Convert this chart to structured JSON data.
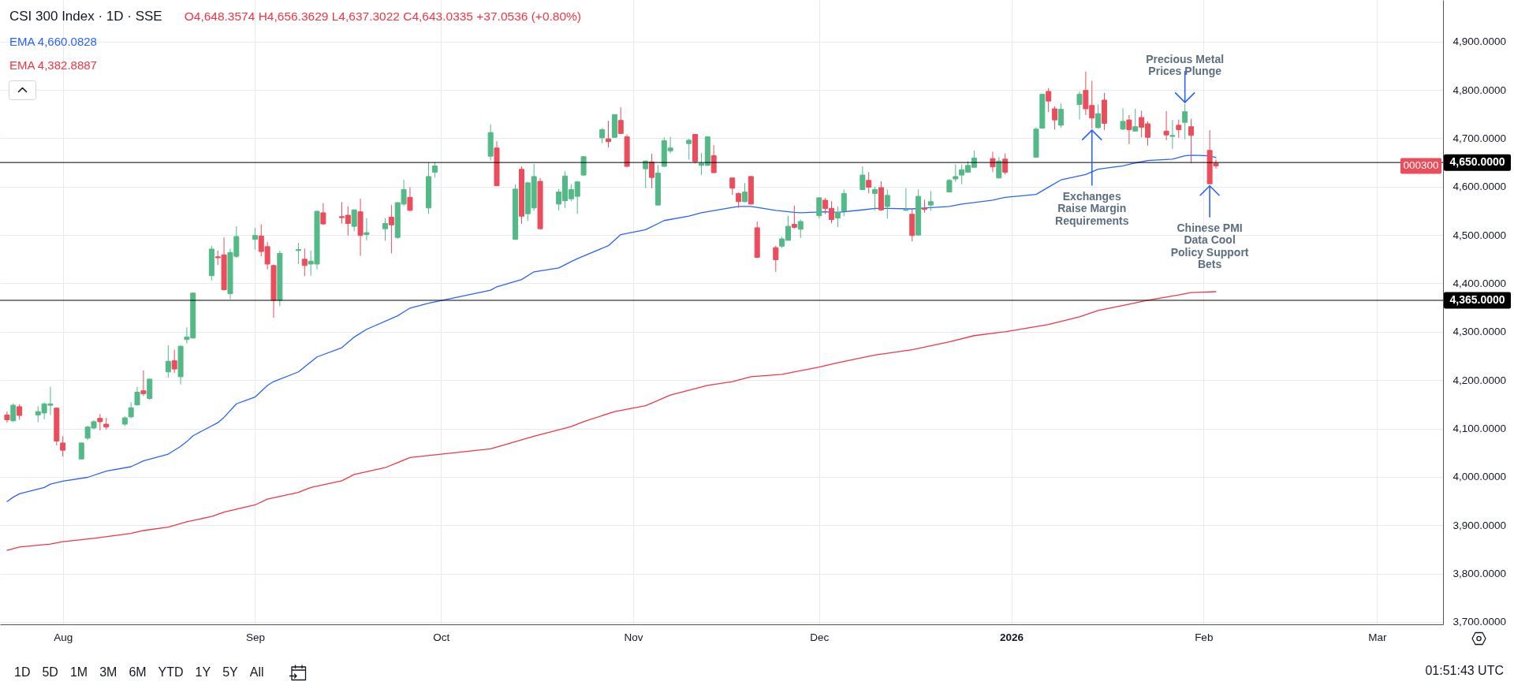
{
  "chart_data": {
    "type": "candlestick",
    "title": "CSI 300 Index · 1D · SSE",
    "subtitle": "O4,648.3574 H4,656.3629 L4,637.3022 C4,643.0335 +37.0536 (+0.80%)",
    "x": [
      "2025-07-23",
      "2025-07-24",
      "2025-07-25",
      "2025-07-28",
      "2025-07-29",
      "2025-07-30",
      "2025-07-31",
      "2025-08-01",
      "2025-08-04",
      "2025-08-05",
      "2025-08-06",
      "2025-08-07",
      "2025-08-08",
      "2025-08-11",
      "2025-08-12",
      "2025-08-13",
      "2025-08-14",
      "2025-08-15",
      "2025-08-18",
      "2025-08-19",
      "2025-08-20",
      "2025-08-21",
      "2025-08-22",
      "2025-08-25",
      "2025-08-26",
      "2025-08-27",
      "2025-08-28",
      "2025-08-29",
      "2025-09-01",
      "2025-09-02",
      "2025-09-03",
      "2025-09-04",
      "2025-09-05",
      "2025-09-08",
      "2025-09-09",
      "2025-09-10",
      "2025-09-11",
      "2025-09-12",
      "2025-09-15",
      "2025-09-16",
      "2025-09-17",
      "2025-09-18",
      "2025-09-19",
      "2025-09-22",
      "2025-09-23",
      "2025-09-24",
      "2025-09-25",
      "2025-09-26",
      "2025-09-29",
      "2025-09-30",
      "2025-10-09",
      "2025-10-10",
      "2025-10-13",
      "2025-10-14",
      "2025-10-15",
      "2025-10-16",
      "2025-10-17",
      "2025-10-20",
      "2025-10-21",
      "2025-10-22",
      "2025-10-23",
      "2025-10-24",
      "2025-10-27",
      "2025-10-28",
      "2025-10-29",
      "2025-10-30",
      "2025-10-31",
      "2025-11-03",
      "2025-11-04",
      "2025-11-05",
      "2025-11-06",
      "2025-11-07",
      "2025-11-10",
      "2025-11-11",
      "2025-11-12",
      "2025-11-13",
      "2025-11-14",
      "2025-11-17",
      "2025-11-18",
      "2025-11-19",
      "2025-11-20",
      "2025-11-21",
      "2025-11-24",
      "2025-11-25",
      "2025-11-26",
      "2025-11-27",
      "2025-11-28",
      "2025-12-01",
      "2025-12-02",
      "2025-12-03",
      "2025-12-04",
      "2025-12-05",
      "2025-12-08",
      "2025-12-09",
      "2025-12-10",
      "2025-12-11",
      "2025-12-12",
      "2025-12-15",
      "2025-12-16",
      "2025-12-17",
      "2025-12-18",
      "2025-12-19",
      "2025-12-22",
      "2025-12-23",
      "2025-12-24",
      "2025-12-25",
      "2025-12-26",
      "2025-12-29",
      "2025-12-30",
      "2025-12-31",
      "2026-01-05",
      "2026-01-06",
      "2026-01-07",
      "2026-01-08",
      "2026-01-09",
      "2026-01-12",
      "2026-01-13",
      "2026-01-14",
      "2026-01-15",
      "2026-01-16",
      "2026-01-19",
      "2026-01-20",
      "2026-01-21",
      "2026-01-22",
      "2026-01-23",
      "2026-01-26",
      "2026-01-27",
      "2026-01-28",
      "2026-01-29",
      "2026-01-30",
      "2026-02-02",
      "2026-02-03"
    ],
    "ohlc": [
      [
        4128,
        4135,
        4112,
        4118
      ],
      [
        4116,
        4152,
        4113,
        4148
      ],
      [
        4145,
        4150,
        4118,
        4127
      ],
      [
        4128,
        4146,
        4113,
        4135
      ],
      [
        4132,
        4154,
        4119,
        4151
      ],
      [
        4148,
        4186,
        4128,
        4151
      ],
      [
        4142,
        4143,
        4065,
        4074
      ],
      [
        4070,
        4084,
        4042,
        4055
      ],
      [
        4037,
        4071,
        4036,
        4070
      ],
      [
        4080,
        4106,
        4076,
        4103
      ],
      [
        4101,
        4117,
        4098,
        4114
      ],
      [
        4121,
        4130,
        4096,
        4114
      ],
      [
        4109,
        4122,
        4098,
        4103
      ],
      [
        4109,
        4125,
        4105,
        4122
      ],
      [
        4124,
        4154,
        4121,
        4143
      ],
      [
        4149,
        4186,
        4147,
        4175
      ],
      [
        4178,
        4220,
        4167,
        4172
      ],
      [
        4162,
        4203,
        4159,
        4202
      ],
      [
        4217,
        4272,
        4205,
        4239
      ],
      [
        4240,
        4263,
        4215,
        4223
      ],
      [
        4207,
        4272,
        4191,
        4270
      ],
      [
        4284,
        4309,
        4276,
        4289
      ],
      [
        4287,
        4381,
        4286,
        4380
      ],
      [
        4416,
        4478,
        4406,
        4471
      ],
      [
        4455,
        4468,
        4438,
        4453
      ],
      [
        4459,
        4495,
        4385,
        4387
      ],
      [
        4379,
        4472,
        4367,
        4464
      ],
      [
        4456,
        4518,
        4453,
        4497
      ],
      [
        4491,
        4515,
        4470,
        4499
      ],
      [
        4498,
        4522,
        4456,
        4466
      ],
      [
        4476,
        4486,
        4429,
        4440
      ],
      [
        4437,
        4439,
        4329,
        4365
      ],
      [
        4365,
        4468,
        4353,
        4462
      ],
      [
        4468,
        4484,
        4440,
        4470
      ],
      [
        4450,
        4472,
        4415,
        4437
      ],
      [
        4440,
        4468,
        4416,
        4446
      ],
      [
        4440,
        4551,
        4429,
        4549
      ],
      [
        4546,
        4566,
        4521,
        4523
      ],
      [
        4538,
        4568,
        4524,
        4536
      ],
      [
        4541,
        4559,
        4499,
        4524
      ],
      [
        4518,
        4553,
        4508,
        4552
      ],
      [
        4548,
        4575,
        4457,
        4499
      ],
      [
        4501,
        4535,
        4489,
        4505
      ],
      [
        4513,
        4535,
        4488,
        4524
      ],
      [
        4537,
        4562,
        4462,
        4521
      ],
      [
        4495,
        4568,
        4492,
        4567
      ],
      [
        4564,
        4614,
        4560,
        4594
      ],
      [
        4578,
        4599,
        4550,
        4551
      ],
      [
        4556,
        4650,
        4544,
        4621
      ],
      [
        4630,
        4651,
        4619,
        4643
      ],
      [
        4663,
        4729,
        4654,
        4712
      ],
      [
        4680,
        4694,
        4601,
        4602
      ],
      [
        4491,
        4605,
        4490,
        4595
      ],
      [
        4636,
        4642,
        4523,
        4539
      ],
      [
        4544,
        4610,
        4529,
        4608
      ],
      [
        4556,
        4647,
        4550,
        4621
      ],
      [
        4611,
        4618,
        4512,
        4513
      ],
      [
        4564,
        4595,
        4551,
        4589
      ],
      [
        4571,
        4632,
        4556,
        4622
      ],
      [
        4575,
        4605,
        4570,
        4594
      ],
      [
        4580,
        4611,
        4544,
        4610
      ],
      [
        4624,
        4663,
        4623,
        4662
      ],
      [
        4701,
        4721,
        4690,
        4718
      ],
      [
        4699,
        4736,
        4681,
        4693
      ],
      [
        4702,
        4750,
        4701,
        4749
      ],
      [
        4737,
        4764,
        4710,
        4710
      ],
      [
        4703,
        4708,
        4641,
        4642
      ],
      [
        4637,
        4654,
        4597,
        4653
      ],
      [
        4651,
        4668,
        4597,
        4619
      ],
      [
        4562,
        4645,
        4561,
        4628
      ],
      [
        4642,
        4702,
        4641,
        4695
      ],
      [
        4674,
        4703,
        4669,
        4680
      ],
      [
        4689,
        4699,
        4656,
        4696
      ],
      [
        4708,
        4709,
        4648,
        4652
      ],
      [
        4644,
        4670,
        4624,
        4648
      ],
      [
        4644,
        4704,
        4643,
        4703
      ],
      [
        4664,
        4686,
        4628,
        4629
      ],
      [
        4618,
        4618,
        4583,
        4597
      ],
      [
        4586,
        4588,
        4556,
        4569
      ],
      [
        4569,
        4608,
        4568,
        4589
      ],
      [
        4621,
        4622,
        4563,
        4564
      ],
      [
        4515,
        4528,
        4453,
        4454
      ],
      [
        4474,
        4478,
        4424,
        4449
      ],
      [
        4477,
        4497,
        4473,
        4492
      ],
      [
        4489,
        4540,
        4489,
        4518
      ],
      [
        4522,
        4561,
        4513,
        4516
      ],
      [
        4512,
        4532,
        4494,
        4528
      ],
      [
        4540,
        4578,
        4534,
        4577
      ],
      [
        4572,
        4577,
        4543,
        4555
      ],
      [
        4555,
        4570,
        4524,
        4532
      ],
      [
        4535,
        4559,
        4516,
        4547
      ],
      [
        4550,
        4594,
        4539,
        4586
      ],
      [
        4594,
        4642,
        4593,
        4624
      ],
      [
        4613,
        4630,
        4586,
        4599
      ],
      [
        4586,
        4600,
        4551,
        4594
      ],
      [
        4598,
        4611,
        4550,
        4552
      ],
      [
        4559,
        4594,
        4534,
        4582
      ],
      [
        4551,
        4597,
        4550,
        4553
      ],
      [
        4543,
        4554,
        4487,
        4499
      ],
      [
        4500,
        4594,
        4499,
        4580
      ],
      [
        4555,
        4573,
        4546,
        4553
      ],
      [
        4562,
        4591,
        4550,
        4569
      ],
      [
        4589,
        4616,
        4588,
        4613
      ],
      [
        4616,
        4646,
        4610,
        4621
      ],
      [
        4624,
        4646,
        4605,
        4635
      ],
      [
        4630,
        4653,
        4629,
        4644
      ],
      [
        4640,
        4675,
        4639,
        4659
      ],
      [
        4658,
        4672,
        4630,
        4641
      ],
      [
        4618,
        4661,
        4617,
        4653
      ],
      [
        4657,
        4669,
        4625,
        4630
      ],
      [
        4661,
        4723,
        4661,
        4719
      ],
      [
        4721,
        4792,
        4720,
        4791
      ],
      [
        4797,
        4804,
        4754,
        4777
      ],
      [
        4761,
        4766,
        4718,
        4738
      ],
      [
        4727,
        4772,
        4722,
        4760
      ],
      [
        4770,
        4797,
        4739,
        4791
      ],
      [
        4799,
        4838,
        4748,
        4761
      ],
      [
        4768,
        4819,
        4720,
        4742
      ],
      [
        4722,
        4770,
        4720,
        4751
      ],
      [
        4779,
        4794,
        4717,
        4731
      ],
      [
        4719,
        4762,
        4717,
        4735
      ],
      [
        4738,
        4748,
        4688,
        4718
      ],
      [
        4715,
        4761,
        4715,
        4724
      ],
      [
        4743,
        4757,
        4702,
        4723
      ],
      [
        4730,
        4735,
        4685,
        4702
      ],
      [
        4715,
        4756,
        4696,
        4707
      ],
      [
        4704,
        4738,
        4678,
        4706
      ],
      [
        4727,
        4739,
        4701,
        4718
      ],
      [
        4733,
        4771,
        4698,
        4755
      ],
      [
        4724,
        4740,
        4649,
        4706
      ],
      [
        4675,
        4717,
        4605,
        4605.98
      ],
      [
        4648.3574,
        4656.3629,
        4637.3022,
        4643.0335
      ]
    ],
    "colors": [
      "#eb4d5c",
      "#53b987",
      "#eb4d5c",
      "#53b987",
      "#53b987",
      "#53b987",
      "#eb4d5c",
      "#eb4d5c",
      "#53b987",
      "#53b987",
      "#53b987",
      "#eb4d5c",
      "#eb4d5c",
      "#53b987",
      "#53b987",
      "#53b987",
      "#eb4d5c",
      "#53b987",
      "#53b987",
      "#eb4d5c",
      "#53b987",
      "#53b987",
      "#53b987",
      "#53b987",
      "#eb4d5c",
      "#eb4d5c",
      "#53b987",
      "#53b987",
      "#53b987",
      "#eb4d5c",
      "#eb4d5c",
      "#eb4d5c",
      "#53b987",
      "#53b987",
      "#eb4d5c",
      "#53b987",
      "#53b987",
      "#eb4d5c",
      "#eb4d5c",
      "#eb4d5c",
      "#53b987",
      "#eb4d5c",
      "#53b987",
      "#53b987",
      "#eb4d5c",
      "#53b987",
      "#53b987",
      "#eb4d5c",
      "#53b987",
      "#53b987",
      "#53b987",
      "#eb4d5c",
      "#53b987",
      "#eb4d5c",
      "#53b987",
      "#53b987",
      "#eb4d5c",
      "#53b987",
      "#53b987",
      "#53b987",
      "#53b987",
      "#53b987",
      "#53b987",
      "#eb4d5c",
      "#53b987",
      "#eb4d5c",
      "#eb4d5c",
      "#53b987",
      "#eb4d5c",
      "#53b987",
      "#53b987",
      "#53b987",
      "#53b987",
      "#eb4d5c",
      "#53b987",
      "#53b987",
      "#eb4d5c",
      "#eb4d5c",
      "#eb4d5c",
      "#53b987",
      "#eb4d5c",
      "#eb4d5c",
      "#eb4d5c",
      "#53b987",
      "#53b987",
      "#eb4d5c",
      "#53b987",
      "#53b987",
      "#eb4d5c",
      "#eb4d5c",
      "#53b987",
      "#53b987",
      "#53b987",
      "#eb4d5c",
      "#53b987",
      "#eb4d5c",
      "#53b987",
      "#53b987",
      "#eb4d5c",
      "#53b987",
      "#eb4d5c",
      "#53b987",
      "#53b987",
      "#53b987",
      "#53b987",
      "#53b987",
      "#53b987",
      "#eb4d5c",
      "#53b987",
      "#eb4d5c",
      "#53b987",
      "#53b987",
      "#eb4d5c",
      "#eb4d5c",
      "#53b987",
      "#53b987",
      "#eb4d5c",
      "#eb4d5c",
      "#53b987",
      "#eb4d5c",
      "#53b987",
      "#eb4d5c",
      "#53b987",
      "#eb4d5c",
      "#eb4d5c",
      "#eb4d5c",
      "#53b987",
      "#eb4d5c",
      "#53b987",
      "#eb4d5c",
      "#eb4d5c",
      "#eb4d5c"
    ],
    "series": [
      {
        "type": "line",
        "name": "EMA 4,660.0828",
        "color": "#2962ff",
        "x": [
          "2025-07-23",
          "2025-07-24",
          "2025-07-25",
          "2025-07-29",
          "2025-07-30",
          "2025-08-01",
          "2025-08-05",
          "2025-08-08",
          "2025-08-12",
          "2025-08-14",
          "2025-08-18",
          "2025-08-20",
          "2025-08-21",
          "2025-08-22",
          "2025-08-26",
          "2025-08-27",
          "2025-08-29",
          "2025-09-01",
          "2025-09-03",
          "2025-09-04",
          "2025-09-08",
          "2025-09-11",
          "2025-09-15",
          "2025-09-17",
          "2025-09-19",
          "2025-09-24",
          "2025-09-26",
          "2025-09-29",
          "2025-10-09",
          "2025-10-10",
          "2025-10-14",
          "2025-10-16",
          "2025-10-20",
          "2025-10-22",
          "2025-10-23",
          "2025-10-28",
          "2025-10-30",
          "2025-11-03",
          "2025-11-06",
          "2025-11-10",
          "2025-11-12",
          "2025-11-17",
          "2025-11-18",
          "2025-11-20",
          "2025-11-24",
          "2025-11-27",
          "2025-11-28",
          "2025-12-02",
          "2025-12-04",
          "2025-12-08",
          "2025-12-10",
          "2025-12-12",
          "2025-12-16",
          "2025-12-18",
          "2025-12-22",
          "2025-12-24",
          "2025-12-29",
          "2025-12-31",
          "2026-01-05",
          "2026-01-07",
          "2026-01-09",
          "2026-01-13",
          "2026-01-15",
          "2026-01-19",
          "2026-01-21",
          "2026-01-23",
          "2026-01-27",
          "2026-01-29",
          "2026-01-30",
          "2026-02-02",
          "2026-02-03"
        ],
        "values": [
          3949,
          3958,
          3965,
          3978,
          3985,
          3991,
          3999,
          4012,
          4021,
          4033,
          4047,
          4063,
          4073,
          4085,
          4112,
          4123,
          4151,
          4165,
          4189,
          4197,
          4217,
          4248,
          4267,
          4289,
          4305,
          4333,
          4349,
          4359,
          4386,
          4393,
          4408,
          4424,
          4432,
          4445,
          4451,
          4478,
          4501,
          4511,
          4530,
          4539,
          4546,
          4557,
          4559,
          4559,
          4551,
          4547,
          4546,
          4548,
          4547,
          4552,
          4555,
          4555,
          4554,
          4556,
          4559,
          4564,
          4572,
          4578,
          4584,
          4599,
          4614,
          4625,
          4636,
          4643,
          4649,
          4654,
          4657,
          4664,
          4665,
          4664,
          4660.0828
        ]
      },
      {
        "type": "line",
        "name": "EMA 4,382.8887",
        "color": "#f23645",
        "x": [
          "2025-07-23",
          "2025-07-25",
          "2025-07-30",
          "2025-08-01",
          "2025-08-06",
          "2025-08-12",
          "2025-08-14",
          "2025-08-18",
          "2025-08-21",
          "2025-08-25",
          "2025-08-27",
          "2025-09-01",
          "2025-09-03",
          "2025-09-08",
          "2025-09-10",
          "2025-09-15",
          "2025-09-17",
          "2025-09-22",
          "2025-09-26",
          "2025-10-09",
          "2025-10-16",
          "2025-10-22",
          "2025-10-24",
          "2025-10-29",
          "2025-11-03",
          "2025-11-07",
          "2025-11-13",
          "2025-11-17",
          "2025-11-20",
          "2025-11-25",
          "2025-12-01",
          "2025-12-04",
          "2025-12-10",
          "2025-12-16",
          "2025-12-22",
          "2025-12-26",
          "2025-12-31",
          "2026-01-07",
          "2026-01-12",
          "2026-01-15",
          "2026-01-20",
          "2026-01-23",
          "2026-01-28",
          "2026-01-30",
          "2026-02-03"
        ],
        "values": [
          3848,
          3855,
          3861,
          3866,
          3873,
          3883,
          3889,
          3896,
          3907,
          3918,
          3927,
          3942,
          3954,
          3968,
          3978,
          3992,
          4005,
          4019,
          4040,
          4058,
          4084,
          4104,
          4114,
          4135,
          4147,
          4169,
          4189,
          4197,
          4207,
          4212,
          4227,
          4236,
          4252,
          4263,
          4279,
          4292,
          4300,
          4315,
          4331,
          4344,
          4357,
          4365,
          4376,
          4381,
          4382.8887
        ]
      }
    ],
    "xlim": [
      "2025-07-22T12:00",
      "2026-03-11"
    ],
    "xticks": [
      {
        "value": "2025-08-01",
        "label": "Aug"
      },
      {
        "value": "2025-09-01",
        "label": "Sep"
      },
      {
        "value": "2025-10-01",
        "label": "Oct"
      },
      {
        "value": "2025-11-01",
        "label": "Nov"
      },
      {
        "value": "2025-12-01",
        "label": "Dec"
      },
      {
        "value": "2026-01-01",
        "label": "2026"
      },
      {
        "value": "2026-02-01",
        "label": "Feb"
      },
      {
        "value": "2026-03-01",
        "label": "Mar"
      }
    ],
    "ylim": [
      3695,
      4986
    ],
    "yticks": [
      {
        "value": 3700,
        "label": "3,700.0000"
      },
      {
        "value": 3800,
        "label": "3,800.0000"
      },
      {
        "value": 3900,
        "label": "3,900.0000"
      },
      {
        "value": 4000,
        "label": "4,000.0000"
      },
      {
        "value": 4100,
        "label": "4,100.0000"
      },
      {
        "value": 4200,
        "label": "4,200.0000"
      },
      {
        "value": 4300,
        "label": "4,300.0000"
      },
      {
        "value": 4400,
        "label": "4,400.0000"
      },
      {
        "value": 4500,
        "label": "4,500.0000"
      },
      {
        "value": 4600,
        "label": "4,600.0000"
      },
      {
        "value": 4700,
        "label": "4,700.0000"
      },
      {
        "value": 4800,
        "label": "4,800.0000"
      },
      {
        "value": 4900,
        "label": "4,900.0000"
      }
    ],
    "grid": true,
    "legend": "top left",
    "ref_lines": [
      {
        "axis": "y",
        "value": 4650,
        "label": "4,650.0000",
        "color": "#000000"
      },
      {
        "axis": "y",
        "value": 4365,
        "label": "4,365.0000",
        "color": "#000000"
      }
    ],
    "annotations": [
      {
        "text": "Precious Metal\nPrices Plunge",
        "x": "2026-01-29",
        "y": 4771
      },
      {
        "text": "Exchanges\nRaise Margin\nRequirements",
        "x": "2026-01-14",
        "y": 4720
      },
      {
        "text": "Chinese PMI\nData Cool\nPolicy Support\nBets",
        "x": "2026-02-02",
        "y": 4605
      },
      {
        "text": "000300",
        "y": 4643.0335
      },
      "1D",
      "5D",
      "1M",
      "3M",
      "6M",
      "YTD",
      "1Y",
      "5Y",
      "All",
      "01:51:43 UTC"
    ]
  }
}
